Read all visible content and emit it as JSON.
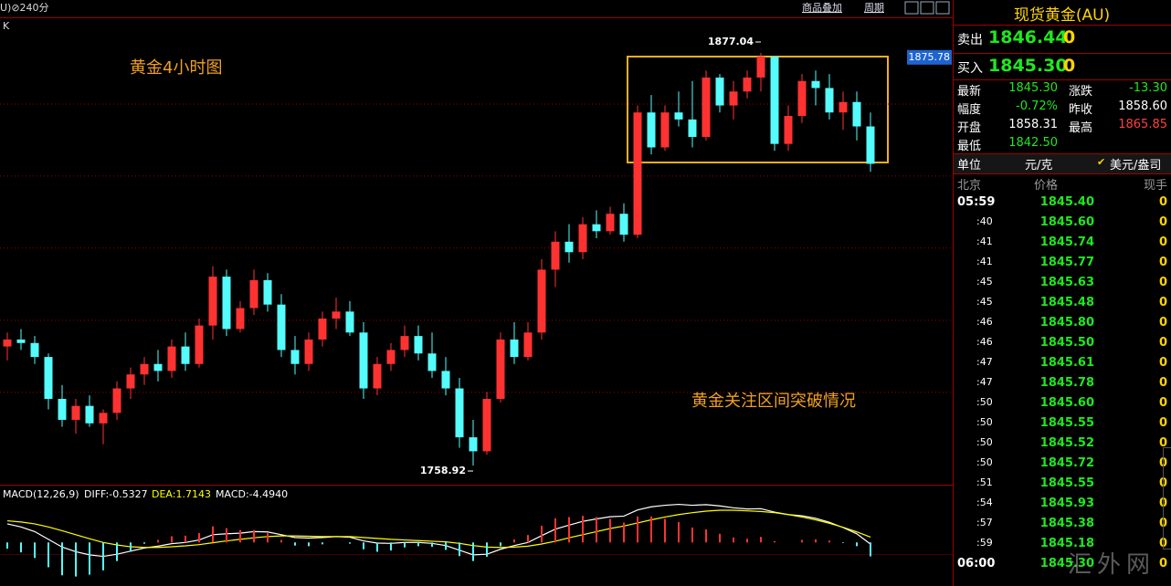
{
  "toolbar": {
    "period": "U)⊘240分",
    "links": [
      "商品叠加",
      "周期"
    ]
  },
  "chart_label": "K",
  "watermark": "汇外网",
  "chart_data": [
    {
      "type": "candlestick",
      "open": [
        1793,
        1795,
        1794,
        1790,
        1778,
        1772,
        1776,
        1771,
        1774,
        1781,
        1785,
        1788,
        1786,
        1793,
        1788,
        1799,
        1813,
        1798,
        1804,
        1812,
        1805,
        1792,
        1788,
        1795,
        1801,
        1803,
        1797,
        1781,
        1788,
        1792,
        1796,
        1791,
        1786,
        1781,
        1767,
        1763,
        1778,
        1795,
        1790,
        1797,
        1815,
        1823,
        1820,
        1828,
        1826,
        1831,
        1825,
        1860,
        1850,
        1860,
        1858,
        1853,
        1870,
        1862,
        1866,
        1870,
        1876,
        1851,
        1859,
        1869,
        1867,
        1860,
        1863,
        1856
      ],
      "high": [
        1797,
        1798,
        1796,
        1791,
        1782,
        1778,
        1779,
        1775,
        1783,
        1787,
        1790,
        1792,
        1795,
        1797,
        1801,
        1816,
        1815,
        1806,
        1815,
        1814,
        1808,
        1796,
        1797,
        1803,
        1807,
        1806,
        1800,
        1790,
        1794,
        1799,
        1799,
        1797,
        1790,
        1784,
        1772,
        1780,
        1797,
        1800,
        1800,
        1818,
        1826,
        1828,
        1830,
        1832,
        1833,
        1834,
        1862,
        1865,
        1862,
        1866,
        1869,
        1872,
        1871,
        1869,
        1872,
        1877.04,
        1876,
        1862,
        1871,
        1872,
        1871,
        1866,
        1866,
        1860
      ],
      "low": [
        1789,
        1792,
        1788,
        1775,
        1770,
        1768,
        1770,
        1765,
        1772,
        1778,
        1782,
        1783,
        1784,
        1786,
        1787,
        1795,
        1796,
        1797,
        1802,
        1803,
        1790,
        1785,
        1786,
        1793,
        1798,
        1796,
        1778,
        1779,
        1786,
        1790,
        1789,
        1784,
        1779,
        1764,
        1758.92,
        1762,
        1777,
        1788,
        1789,
        1795,
        1810,
        1817,
        1818,
        1824,
        1825,
        1823,
        1824,
        1848,
        1849,
        1856,
        1850,
        1852,
        1860,
        1858,
        1864,
        1866,
        1849,
        1849,
        1857,
        1862,
        1858,
        1855,
        1852,
        1843
      ],
      "close": [
        1795,
        1794,
        1790,
        1778,
        1772,
        1776,
        1771,
        1774,
        1781,
        1785,
        1788,
        1786,
        1793,
        1788,
        1799,
        1813,
        1798,
        1804,
        1812,
        1805,
        1792,
        1788,
        1795,
        1801,
        1803,
        1797,
        1781,
        1788,
        1792,
        1796,
        1791,
        1786,
        1781,
        1767,
        1763,
        1778,
        1795,
        1790,
        1797,
        1815,
        1823,
        1820,
        1828,
        1826,
        1831,
        1825,
        1860,
        1850,
        1860,
        1858,
        1853,
        1870,
        1862,
        1866,
        1870,
        1876,
        1851,
        1859,
        1869,
        1867,
        1860,
        1863,
        1856,
        1845.3
      ],
      "up_color": "#ff3232",
      "down_color": "#54fcfc",
      "ylim": [
        1753.7,
        1886.97
      ],
      "yticks": [
        1875.78
      ],
      "grid_lines": [
        1862.4,
        1841.8,
        1821.2,
        1800.5,
        1779.9
      ],
      "high_marker": 1877.04,
      "low_marker": 1758.92,
      "annotations": [
        "黄金4小时图",
        "黄金关注区间突破情况"
      ]
    },
    {
      "type": "macd",
      "title": "MACD(12,26,9)",
      "ylim": [
        -12,
        16
      ],
      "series": [
        {
          "name": "DIFF:-0.5327",
          "color": "#ffffff",
          "values": [
            6,
            5,
            3.5,
            1,
            -1.5,
            -3,
            -4,
            -4.5,
            -3.8,
            -2.8,
            -1.8,
            -1.2,
            -0.4,
            0,
            0.8,
            2.5,
            2.8,
            3,
            3.5,
            3.4,
            2.5,
            1.6,
            1.4,
            1.6,
            1.9,
            1.7,
            0.5,
            -0.2,
            -0.3,
            0,
            0,
            -0.3,
            -1,
            -2.5,
            -4,
            -3.8,
            -2.2,
            -1,
            0,
            2.2,
            4.3,
            5.6,
            6.8,
            7.6,
            8.3,
            8.5,
            10.5,
            11.5,
            12,
            12.3,
            12,
            12.2,
            11.8,
            11.2,
            10.8,
            10.9,
            9.8,
            9,
            8.6,
            7.8,
            6.5,
            4.8,
            2.8,
            -0.5327
          ]
        },
        {
          "name": "DEA:1.7143",
          "color": "#ffff00",
          "values": [
            7,
            6.6,
            6,
            5,
            3.8,
            2.5,
            1.2,
            0,
            -0.8,
            -1.4,
            -1.6,
            -1.6,
            -1.4,
            -1.1,
            -0.7,
            -0.1,
            0.5,
            1,
            1.5,
            1.9,
            2.1,
            2.1,
            2,
            1.9,
            1.9,
            1.9,
            1.6,
            1.3,
            1,
            0.8,
            0.6,
            0.4,
            0.2,
            -0.3,
            -1,
            -1.5,
            -1.6,
            -1.5,
            -1.2,
            -0.5,
            0.4,
            1.5,
            2.5,
            3.5,
            4.5,
            5.3,
            6.3,
            7.3,
            8.2,
            9,
            9.6,
            10.1,
            10.4,
            10.4,
            10.2,
            10,
            9.6,
            9,
            8.2,
            7.3,
            6.2,
            4.9,
            3.4,
            1.7143
          ]
        },
        {
          "name": "MACD:-4.4940",
          "color": "#ffffff",
          "up_color": "#ff3232",
          "down_color": "#54fcfc",
          "values": [
            -2,
            -3.2,
            -5,
            -8,
            -10.6,
            -11,
            -10.4,
            -9,
            -6,
            -2.8,
            -0.4,
            0.8,
            2,
            2.2,
            3,
            5.2,
            4.6,
            4,
            4,
            3,
            0.8,
            -1,
            -1.2,
            -0.6,
            0,
            -0.4,
            -2.2,
            -3,
            -2.6,
            -1.6,
            -1.2,
            -1.4,
            -2.4,
            -4.4,
            -6,
            -4.6,
            -1.2,
            1,
            2.4,
            5.4,
            7.8,
            8.2,
            8.6,
            8.2,
            7.6,
            6.4,
            8.4,
            8.4,
            7.6,
            6.6,
            4.8,
            4.2,
            2.8,
            1.6,
            1.2,
            1.8,
            0.4,
            0,
            0.8,
            1,
            0.6,
            -0.2,
            -1.2,
            -4.494
          ]
        }
      ]
    }
  ],
  "quote_panel": {
    "title": "现货黄金(AU)",
    "sell": {
      "label": "卖出",
      "price": "1846.44",
      "volume": "0"
    },
    "buy": {
      "label": "买入",
      "price": "1845.30",
      "volume": "0"
    },
    "stats": [
      {
        "label": "最新",
        "value": "1845.30"
      },
      {
        "label": "涨跌",
        "value": "-13.30"
      },
      {
        "label": "幅度",
        "value": "-0.72%"
      },
      {
        "label": "昨收",
        "value": "1858.60"
      },
      {
        "label": "开盘",
        "value": "1858.31"
      },
      {
        "label": "最高",
        "value": "1865.85"
      },
      {
        "label": "最低",
        "value": "1842.50"
      }
    ],
    "unit": {
      "label": "单位",
      "value": "元/克",
      "option": "美元/盎司"
    },
    "columns": [
      "北京",
      "价格",
      "现手"
    ],
    "ticks": [
      [
        "05:59",
        "1845.40",
        "0"
      ],
      [
        ":40",
        "1845.60",
        "0"
      ],
      [
        ":41",
        "1845.74",
        "0"
      ],
      [
        ":41",
        "1845.77",
        "0"
      ],
      [
        ":45",
        "1845.63",
        "0"
      ],
      [
        ":45",
        "1845.48",
        "0"
      ],
      [
        ":46",
        "1845.80",
        "0"
      ],
      [
        ":46",
        "1845.50",
        "0"
      ],
      [
        ":47",
        "1845.61",
        "0"
      ],
      [
        ":47",
        "1845.78",
        "0"
      ],
      [
        ":50",
        "1845.60",
        "0"
      ],
      [
        ":50",
        "1845.55",
        "0"
      ],
      [
        ":50",
        "1845.52",
        "0"
      ],
      [
        ":50",
        "1845.72",
        "0"
      ],
      [
        ":51",
        "1845.55",
        "0"
      ],
      [
        ":54",
        "1845.93",
        "0"
      ],
      [
        ":57",
        "1845.38",
        "0"
      ],
      [
        ":59",
        "1845.18",
        "0"
      ],
      [
        "06:00",
        "1845.30",
        "0"
      ]
    ]
  }
}
